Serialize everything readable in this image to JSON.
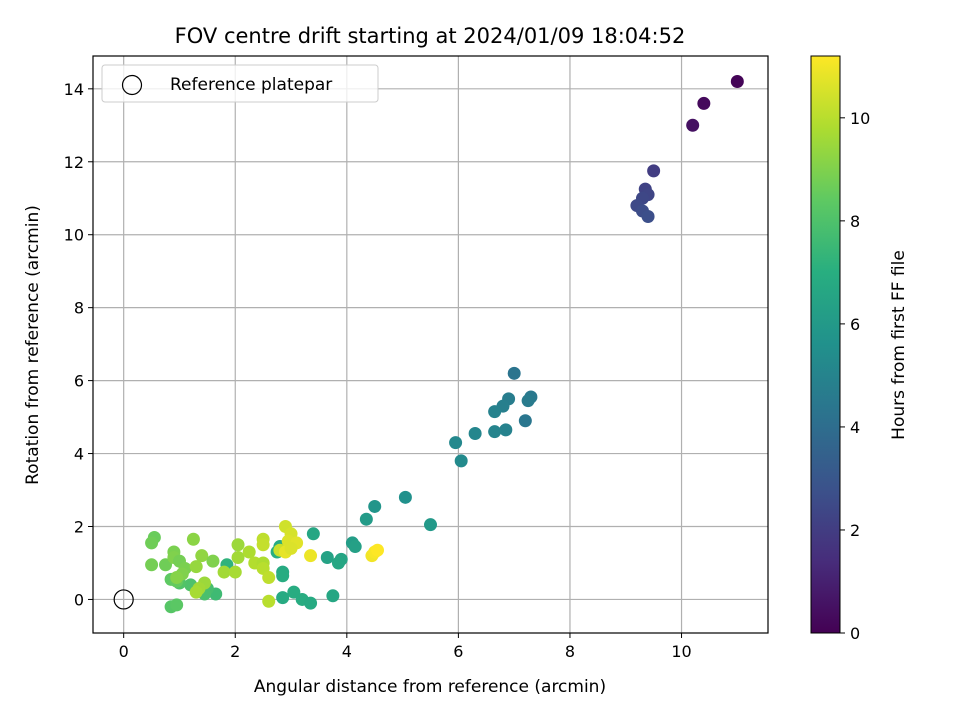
{
  "chart_data": {
    "type": "scatter",
    "title": "FOV centre drift starting at 2024/01/09 18:04:52",
    "xlabel": "Angular distance from reference (arcmin)",
    "ylabel": "Rotation from reference (arcmin)",
    "xlim": [
      -0.55,
      11.55
    ],
    "ylim": [
      -0.92,
      14.9
    ],
    "xticks": [
      0,
      2,
      4,
      6,
      8,
      10
    ],
    "yticks": [
      0,
      2,
      4,
      6,
      8,
      10,
      12,
      14
    ],
    "grid": true,
    "legend": {
      "placement": "upper-left",
      "entries": [
        "Reference platepar"
      ]
    },
    "reference_point": {
      "x": 0,
      "y": 0,
      "label": "Reference platepar"
    },
    "colorbar": {
      "label": "Hours from first FF file",
      "colormap": "viridis",
      "range": [
        0,
        11.2
      ],
      "ticks": [
        0,
        2,
        4,
        6,
        8,
        10
      ]
    },
    "points": [
      {
        "x": 11.0,
        "y": 14.2,
        "c": 0.1
      },
      {
        "x": 10.4,
        "y": 13.6,
        "c": 0.3
      },
      {
        "x": 10.2,
        "y": 13.0,
        "c": 0.5
      },
      {
        "x": 9.5,
        "y": 11.75,
        "c": 2.0
      },
      {
        "x": 9.35,
        "y": 11.25,
        "c": 2.2
      },
      {
        "x": 9.4,
        "y": 11.1,
        "c": 2.3
      },
      {
        "x": 9.3,
        "y": 11.0,
        "c": 2.4
      },
      {
        "x": 9.2,
        "y": 10.8,
        "c": 2.5
      },
      {
        "x": 9.3,
        "y": 10.65,
        "c": 2.6
      },
      {
        "x": 9.4,
        "y": 10.5,
        "c": 2.7
      },
      {
        "x": 7.0,
        "y": 6.2,
        "c": 4.3
      },
      {
        "x": 7.3,
        "y": 5.55,
        "c": 4.5
      },
      {
        "x": 7.25,
        "y": 5.45,
        "c": 4.6
      },
      {
        "x": 6.9,
        "y": 5.5,
        "c": 4.7
      },
      {
        "x": 6.8,
        "y": 5.3,
        "c": 4.8
      },
      {
        "x": 6.65,
        "y": 5.15,
        "c": 4.9
      },
      {
        "x": 7.2,
        "y": 4.9,
        "c": 4.4
      },
      {
        "x": 6.85,
        "y": 4.65,
        "c": 4.9
      },
      {
        "x": 6.65,
        "y": 4.6,
        "c": 5.0
      },
      {
        "x": 6.3,
        "y": 4.55,
        "c": 5.1
      },
      {
        "x": 5.95,
        "y": 4.3,
        "c": 5.2
      },
      {
        "x": 6.05,
        "y": 3.8,
        "c": 5.3
      },
      {
        "x": 5.05,
        "y": 2.8,
        "c": 5.6
      },
      {
        "x": 4.5,
        "y": 2.55,
        "c": 5.8
      },
      {
        "x": 5.5,
        "y": 2.05,
        "c": 6.0
      },
      {
        "x": 4.35,
        "y": 2.2,
        "c": 6.1
      },
      {
        "x": 3.4,
        "y": 1.8,
        "c": 6.6
      },
      {
        "x": 4.1,
        "y": 1.55,
        "c": 6.2
      },
      {
        "x": 4.15,
        "y": 1.45,
        "c": 6.3
      },
      {
        "x": 3.65,
        "y": 1.15,
        "c": 6.4
      },
      {
        "x": 3.9,
        "y": 1.1,
        "c": 6.5
      },
      {
        "x": 3.85,
        "y": 1.0,
        "c": 6.6
      },
      {
        "x": 2.85,
        "y": 0.75,
        "c": 6.8
      },
      {
        "x": 2.85,
        "y": 0.65,
        "c": 6.9
      },
      {
        "x": 2.8,
        "y": 1.45,
        "c": 6.8
      },
      {
        "x": 2.75,
        "y": 1.3,
        "c": 7.0
      },
      {
        "x": 3.05,
        "y": 0.2,
        "c": 6.9
      },
      {
        "x": 2.85,
        "y": 0.05,
        "c": 6.8
      },
      {
        "x": 3.2,
        "y": 0.0,
        "c": 6.9
      },
      {
        "x": 3.35,
        "y": -0.1,
        "c": 6.8
      },
      {
        "x": 3.75,
        "y": 0.1,
        "c": 6.6
      },
      {
        "x": 1.85,
        "y": 0.95,
        "c": 7.2
      },
      {
        "x": 1.65,
        "y": 0.15,
        "c": 7.6
      },
      {
        "x": 1.5,
        "y": 0.3,
        "c": 7.8
      },
      {
        "x": 1.45,
        "y": 0.15,
        "c": 7.9
      },
      {
        "x": 1.2,
        "y": 0.4,
        "c": 8.0
      },
      {
        "x": 1.0,
        "y": 0.45,
        "c": 8.1
      },
      {
        "x": 0.85,
        "y": -0.2,
        "c": 8.2
      },
      {
        "x": 0.95,
        "y": -0.15,
        "c": 8.3
      },
      {
        "x": 0.85,
        "y": 0.55,
        "c": 8.4
      },
      {
        "x": 0.95,
        "y": 0.5,
        "c": 8.5
      },
      {
        "x": 0.55,
        "y": 1.7,
        "c": 8.6
      },
      {
        "x": 0.5,
        "y": 1.55,
        "c": 8.7
      },
      {
        "x": 0.5,
        "y": 0.95,
        "c": 8.8
      },
      {
        "x": 0.75,
        "y": 0.95,
        "c": 8.7
      },
      {
        "x": 0.9,
        "y": 1.3,
        "c": 8.9
      },
      {
        "x": 0.9,
        "y": 1.15,
        "c": 9.0
      },
      {
        "x": 1.0,
        "y": 1.05,
        "c": 8.8
      },
      {
        "x": 1.1,
        "y": 0.85,
        "c": 8.9
      },
      {
        "x": 1.05,
        "y": 0.7,
        "c": 9.0
      },
      {
        "x": 0.95,
        "y": 0.6,
        "c": 9.1
      },
      {
        "x": 1.25,
        "y": 1.65,
        "c": 9.2
      },
      {
        "x": 1.4,
        "y": 1.2,
        "c": 9.3
      },
      {
        "x": 1.6,
        "y": 1.05,
        "c": 9.0
      },
      {
        "x": 1.3,
        "y": 0.9,
        "c": 9.4
      },
      {
        "x": 1.45,
        "y": 0.45,
        "c": 9.5
      },
      {
        "x": 1.35,
        "y": 0.3,
        "c": 9.6
      },
      {
        "x": 1.3,
        "y": 0.2,
        "c": 9.7
      },
      {
        "x": 1.8,
        "y": 0.75,
        "c": 9.6
      },
      {
        "x": 2.0,
        "y": 0.75,
        "c": 9.7
      },
      {
        "x": 2.05,
        "y": 1.5,
        "c": 9.5
      },
      {
        "x": 2.05,
        "y": 1.15,
        "c": 9.6
      },
      {
        "x": 2.25,
        "y": 1.3,
        "c": 9.8
      },
      {
        "x": 2.35,
        "y": 1.0,
        "c": 9.9
      },
      {
        "x": 2.5,
        "y": 1.0,
        "c": 9.8
      },
      {
        "x": 2.5,
        "y": 0.85,
        "c": 10.0
      },
      {
        "x": 2.5,
        "y": 1.65,
        "c": 10.1
      },
      {
        "x": 2.5,
        "y": 1.5,
        "c": 10.2
      },
      {
        "x": 2.6,
        "y": -0.05,
        "c": 10.0
      },
      {
        "x": 2.6,
        "y": 0.6,
        "c": 10.1
      },
      {
        "x": 2.8,
        "y": 1.35,
        "c": 10.3
      },
      {
        "x": 2.9,
        "y": 2.0,
        "c": 10.4
      },
      {
        "x": 3.0,
        "y": 1.8,
        "c": 10.5
      },
      {
        "x": 2.95,
        "y": 1.6,
        "c": 10.6
      },
      {
        "x": 3.1,
        "y": 1.55,
        "c": 10.7
      },
      {
        "x": 2.9,
        "y": 1.3,
        "c": 10.8
      },
      {
        "x": 3.0,
        "y": 1.4,
        "c": 10.6
      },
      {
        "x": 3.35,
        "y": 1.2,
        "c": 10.9
      },
      {
        "x": 4.45,
        "y": 1.2,
        "c": 11.0
      },
      {
        "x": 4.5,
        "y": 1.3,
        "c": 11.1
      },
      {
        "x": 4.55,
        "y": 1.35,
        "c": 11.2
      }
    ]
  }
}
